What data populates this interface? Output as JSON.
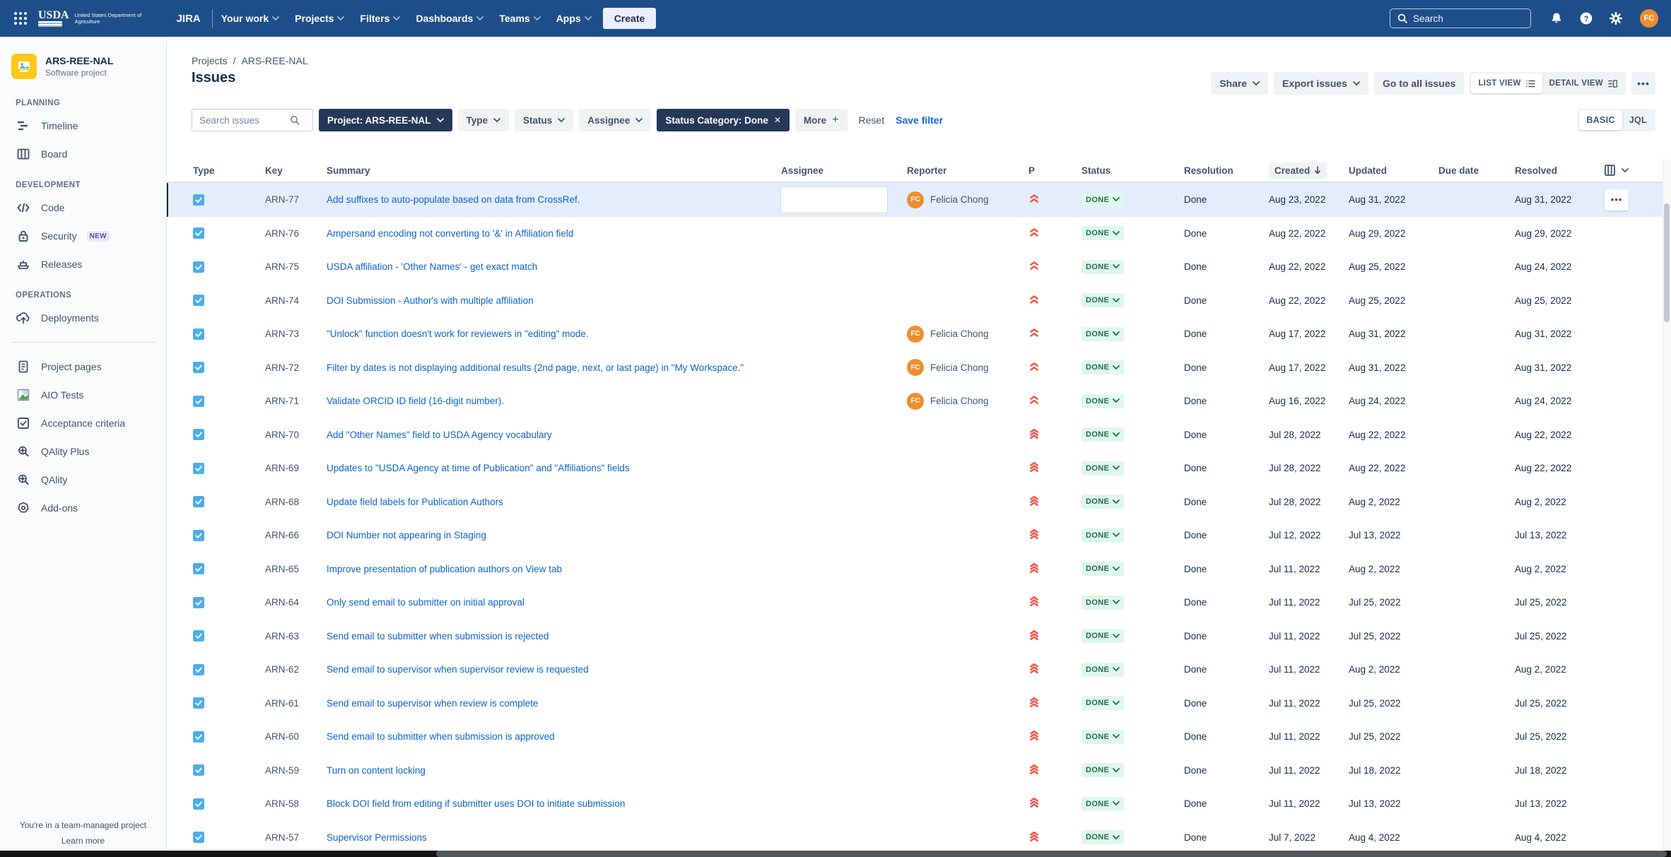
{
  "colors": {
    "topnav_bg": "#1d4e8a",
    "accent_blue": "#0c66e4",
    "summary_link_blue": "#0b63ce",
    "done_badge_bg": "#dff7ec",
    "done_badge_text": "#216e4e",
    "priority_red": "#fb5444",
    "task_icon_blue": "#4bade8",
    "dark_chip_bg": "#253858",
    "row_highlight_bg": "#e4edfc",
    "avatar_orange": "#ef8d2e",
    "new_badge_purple": "#5e4db2"
  },
  "topnav": {
    "logo_org": "USDA",
    "logo_caption": "United States Department of Agriculture",
    "app_name": "JIRA",
    "items": [
      {
        "label": "Your work"
      },
      {
        "label": "Projects"
      },
      {
        "label": "Filters"
      },
      {
        "label": "Dashboards"
      },
      {
        "label": "Teams"
      },
      {
        "label": "Apps"
      }
    ],
    "create_label": "Create",
    "search_placeholder": "Search",
    "avatar_initials": "FC"
  },
  "sidebar": {
    "project_name": "ARS-REE-NAL",
    "project_type": "Software project",
    "sections": [
      {
        "title": "PLANNING",
        "divider": false,
        "items": [
          {
            "label": "Timeline",
            "icon": "timeline-icon"
          },
          {
            "label": "Board",
            "icon": "board-icon"
          }
        ]
      },
      {
        "title": "DEVELOPMENT",
        "divider": false,
        "items": [
          {
            "label": "Code",
            "icon": "code-icon"
          },
          {
            "label": "Security",
            "icon": "lock-icon",
            "badge": "NEW"
          },
          {
            "label": "Releases",
            "icon": "releases-icon"
          }
        ]
      },
      {
        "title": "OPERATIONS",
        "divider": false,
        "items": [
          {
            "label": "Deployments",
            "icon": "deployments-icon"
          }
        ]
      },
      {
        "title": "",
        "divider": true,
        "items": [
          {
            "label": "Project pages",
            "icon": "pages-icon"
          },
          {
            "label": "AIO Tests",
            "icon": "aio-tests-icon"
          },
          {
            "label": "Acceptance criteria",
            "icon": "acceptance-icon"
          },
          {
            "label": "QAlity Plus",
            "icon": "qality-plus-icon"
          },
          {
            "label": "QAlity",
            "icon": "qality-icon"
          },
          {
            "label": "Add-ons",
            "icon": "addons-icon"
          }
        ]
      }
    ],
    "footer_note": "You're in a team-managed project",
    "footer_link": "Learn more"
  },
  "page": {
    "breadcrumbs": [
      "Projects",
      "ARS-REE-NAL"
    ],
    "title": "Issues",
    "share_label": "Share",
    "export_label": "Export issues",
    "go_to_all_label": "Go to all issues",
    "list_view_label": "LIST VIEW",
    "detail_view_label": "DETAIL VIEW",
    "more_menu_label": "•••"
  },
  "filters": {
    "search_placeholder": "Search issues",
    "project_chip": "Project: ARS-REE-NAL",
    "type_chip": "Type",
    "status_chip": "Status",
    "assignee_chip": "Assignee",
    "status_category_chip": "Status Category: Done",
    "more_chip": "More",
    "reset_label": "Reset",
    "save_filter_label": "Save filter",
    "basic_label": "BASIC",
    "jql_label": "JQL"
  },
  "table": {
    "columns": [
      "Type",
      "Key",
      "Summary",
      "Assignee",
      "Reporter",
      "P",
      "Status",
      "Resolution",
      "Created",
      "Updated",
      "Due date",
      "Resolved"
    ],
    "sorted_column": "Created",
    "rows": [
      {
        "key": "ARN-77",
        "summary": "Add suffixes to auto-populate based on data from CrossRef.",
        "assignee": "",
        "reporter": "Felicia Chong",
        "reporter_initials": "FC",
        "priority": "high",
        "status": "DONE",
        "resolution": "Done",
        "created": "Aug 23, 2022",
        "updated": "Aug 31, 2022",
        "due": "",
        "resolved": "Aug 31, 2022",
        "highlighted": true
      },
      {
        "key": "ARN-76",
        "summary": "Ampersand encoding not converting to '&' in Affiliation field",
        "assignee": "",
        "reporter": "",
        "priority": "high",
        "status": "DONE",
        "resolution": "Done",
        "created": "Aug 22, 2022",
        "updated": "Aug 29, 2022",
        "due": "",
        "resolved": "Aug 29, 2022",
        "highlighted": false
      },
      {
        "key": "ARN-75",
        "summary": "USDA affiliation - 'Other Names' - get exact match",
        "assignee": "",
        "reporter": "",
        "priority": "high",
        "status": "DONE",
        "resolution": "Done",
        "created": "Aug 22, 2022",
        "updated": "Aug 25, 2022",
        "due": "",
        "resolved": "Aug 24, 2022",
        "highlighted": false
      },
      {
        "key": "ARN-74",
        "summary": "DOI Submission - Author's with multiple affiliation",
        "assignee": "",
        "reporter": "",
        "priority": "high",
        "status": "DONE",
        "resolution": "Done",
        "created": "Aug 22, 2022",
        "updated": "Aug 25, 2022",
        "due": "",
        "resolved": "Aug 25, 2022",
        "highlighted": false
      },
      {
        "key": "ARN-73",
        "summary": "\"Unlock\" function doesn't work for reviewers in \"editing\" mode.",
        "assignee": "",
        "reporter": "Felicia Chong",
        "reporter_initials": "FC",
        "priority": "high",
        "status": "DONE",
        "resolution": "Done",
        "created": "Aug 17, 2022",
        "updated": "Aug 31, 2022",
        "due": "",
        "resolved": "Aug 31, 2022",
        "highlighted": false
      },
      {
        "key": "ARN-72",
        "summary": "Filter by dates is not displaying additional results (2nd page, next, or last page) in \"My Workspace.\"",
        "assignee": "",
        "reporter": "Felicia Chong",
        "reporter_initials": "FC",
        "priority": "high",
        "status": "DONE",
        "resolution": "Done",
        "created": "Aug 17, 2022",
        "updated": "Aug 31, 2022",
        "due": "",
        "resolved": "Aug 31, 2022",
        "highlighted": false
      },
      {
        "key": "ARN-71",
        "summary": "Validate ORCID ID field (16-digit number).",
        "assignee": "",
        "reporter": "Felicia Chong",
        "reporter_initials": "FC",
        "priority": "high",
        "status": "DONE",
        "resolution": "Done",
        "created": "Aug 16, 2022",
        "updated": "Aug 24, 2022",
        "due": "",
        "resolved": "Aug 24, 2022",
        "highlighted": false
      },
      {
        "key": "ARN-70",
        "summary": "Add \"Other Names\" field to USDA Agency vocabulary",
        "assignee": "",
        "reporter": "",
        "priority": "highest",
        "status": "DONE",
        "resolution": "Done",
        "created": "Jul 28, 2022",
        "updated": "Aug 22, 2022",
        "due": "",
        "resolved": "Aug 22, 2022",
        "highlighted": false
      },
      {
        "key": "ARN-69",
        "summary": "Updates to \"USDA Agency at time of Publication\" and \"Affiliations\" fields",
        "assignee": "",
        "reporter": "",
        "priority": "highest",
        "status": "DONE",
        "resolution": "Done",
        "created": "Jul 28, 2022",
        "updated": "Aug 22, 2022",
        "due": "",
        "resolved": "Aug 22, 2022",
        "highlighted": false
      },
      {
        "key": "ARN-68",
        "summary": "Update field labels for Publication Authors",
        "assignee": "",
        "reporter": "",
        "priority": "highest",
        "status": "DONE",
        "resolution": "Done",
        "created": "Jul 28, 2022",
        "updated": "Aug 2, 2022",
        "due": "",
        "resolved": "Aug 2, 2022",
        "highlighted": false
      },
      {
        "key": "ARN-66",
        "summary": "DOI Number not appearing in Staging",
        "assignee": "",
        "reporter": "",
        "priority": "highest",
        "status": "DONE",
        "resolution": "Done",
        "created": "Jul 12, 2022",
        "updated": "Jul 13, 2022",
        "due": "",
        "resolved": "Jul 13, 2022",
        "highlighted": false
      },
      {
        "key": "ARN-65",
        "summary": "Improve presentation of publication authors on View tab",
        "assignee": "",
        "reporter": "",
        "priority": "highest",
        "status": "DONE",
        "resolution": "Done",
        "created": "Jul 11, 2022",
        "updated": "Aug 2, 2022",
        "due": "",
        "resolved": "Aug 2, 2022",
        "highlighted": false
      },
      {
        "key": "ARN-64",
        "summary": "Only send email to submitter on initial approval",
        "assignee": "",
        "reporter": "",
        "priority": "highest",
        "status": "DONE",
        "resolution": "Done",
        "created": "Jul 11, 2022",
        "updated": "Jul 25, 2022",
        "due": "",
        "resolved": "Jul 25, 2022",
        "highlighted": false
      },
      {
        "key": "ARN-63",
        "summary": "Send email to submitter when submission is rejected",
        "assignee": "",
        "reporter": "",
        "priority": "highest",
        "status": "DONE",
        "resolution": "Done",
        "created": "Jul 11, 2022",
        "updated": "Jul 25, 2022",
        "due": "",
        "resolved": "Jul 25, 2022",
        "highlighted": false
      },
      {
        "key": "ARN-62",
        "summary": "Send email to supervisor when supervisor review is requested",
        "assignee": "",
        "reporter": "",
        "priority": "highest",
        "status": "DONE",
        "resolution": "Done",
        "created": "Jul 11, 2022",
        "updated": "Aug 2, 2022",
        "due": "",
        "resolved": "Aug 2, 2022",
        "highlighted": false
      },
      {
        "key": "ARN-61",
        "summary": "Send email to supervisor when review is complete",
        "assignee": "",
        "reporter": "",
        "priority": "highest",
        "status": "DONE",
        "resolution": "Done",
        "created": "Jul 11, 2022",
        "updated": "Jul 25, 2022",
        "due": "",
        "resolved": "Jul 25, 2022",
        "highlighted": false
      },
      {
        "key": "ARN-60",
        "summary": "Send email to submitter when submission is approved",
        "assignee": "",
        "reporter": "",
        "priority": "highest",
        "status": "DONE",
        "resolution": "Done",
        "created": "Jul 11, 2022",
        "updated": "Jul 25, 2022",
        "due": "",
        "resolved": "Jul 25, 2022",
        "highlighted": false
      },
      {
        "key": "ARN-59",
        "summary": "Turn on content locking",
        "assignee": "",
        "reporter": "",
        "priority": "highest",
        "status": "DONE",
        "resolution": "Done",
        "created": "Jul 11, 2022",
        "updated": "Jul 18, 2022",
        "due": "",
        "resolved": "Jul 18, 2022",
        "highlighted": false
      },
      {
        "key": "ARN-58",
        "summary": "Block DOI field from editing if submitter uses DOI to initiate submission",
        "assignee": "",
        "reporter": "",
        "priority": "highest",
        "status": "DONE",
        "resolution": "Done",
        "created": "Jul 11, 2022",
        "updated": "Jul 13, 2022",
        "due": "",
        "resolved": "Jul 13, 2022",
        "highlighted": false
      },
      {
        "key": "ARN-57",
        "summary": "Supervisor Permissions",
        "assignee": "",
        "reporter": "",
        "priority": "highest",
        "status": "DONE",
        "resolution": "Done",
        "created": "Jul 7, 2022",
        "updated": "Aug 4, 2022",
        "due": "",
        "resolved": "Aug 4, 2022",
        "highlighted": false
      }
    ]
  }
}
